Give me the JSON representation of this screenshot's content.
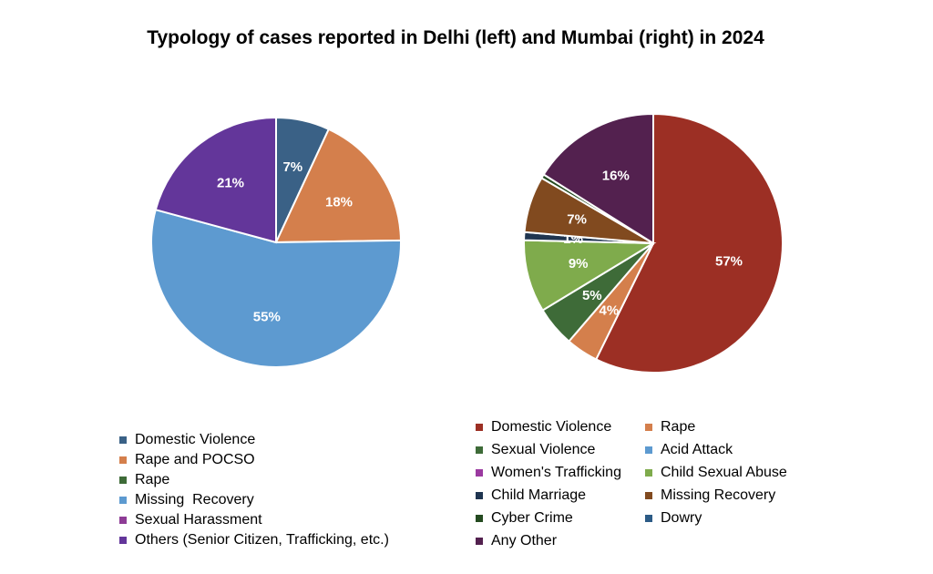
{
  "title": "Typology of cases reported in Delhi (left) and Mumbai (right) in 2024",
  "chart_data": [
    {
      "type": "pie",
      "id": "delhi",
      "slices": [
        {
          "label": "Domestic Violence",
          "value": 7,
          "data_label": "7%",
          "color": "#3a6186"
        },
        {
          "label": "Rape and POCSO",
          "value": 18,
          "data_label": "18%",
          "color": "#d47f4c"
        },
        {
          "label": "Rape",
          "value": 0,
          "data_label": "",
          "color": "#3e6b38"
        },
        {
          "label": "Missing  Recovery",
          "value": 55,
          "data_label": "55%",
          "color": "#5d9ad0"
        },
        {
          "label": "Sexual Harassment",
          "value": 0,
          "data_label": "",
          "color": "#8e3c96"
        },
        {
          "label": "Others (Senior Citizen, Trafficking, etc.)",
          "value": 21,
          "data_label": "21%",
          "color": "#63369a"
        }
      ],
      "legend_position": "bottom"
    },
    {
      "type": "pie",
      "id": "mumbai",
      "slices": [
        {
          "label": "Domestic Violence",
          "value": 57,
          "data_label": "57%",
          "color": "#9c2f24"
        },
        {
          "label": "Rape",
          "value": 4,
          "data_label": "4%",
          "color": "#d47f4c"
        },
        {
          "label": "Sexual Violence",
          "value": 5,
          "data_label": "5%",
          "color": "#3e6b38"
        },
        {
          "label": "Acid Attack",
          "value": 0,
          "data_label": "",
          "color": "#5d9ad0"
        },
        {
          "label": "Women's Trafficking",
          "value": 0,
          "data_label": "",
          "color": "#9b3aa0"
        },
        {
          "label": "Child Sexual Abuse",
          "value": 9,
          "data_label": "9%",
          "color": "#7fab4c"
        },
        {
          "label": "Child Marriage",
          "value": 1,
          "data_label": "1%",
          "color": "#1f3550"
        },
        {
          "label": "Missing Recovery",
          "value": 7,
          "data_label": "7%",
          "color": "#814a1f"
        },
        {
          "label": "Cyber Crime",
          "value": 0.5,
          "data_label": "",
          "color": "#244a20"
        },
        {
          "label": "Dowry",
          "value": 0,
          "data_label": "",
          "color": "#2c5b86"
        },
        {
          "label": "Any Other",
          "value": 16,
          "data_label": "16%",
          "color": "#53214f"
        }
      ],
      "legend_position": "bottom"
    }
  ]
}
